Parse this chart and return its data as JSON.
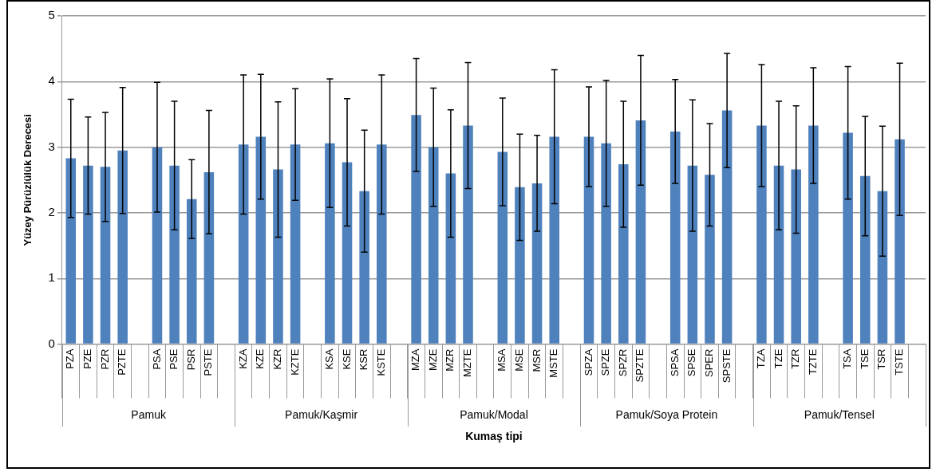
{
  "chart_data": {
    "type": "bar",
    "xlabel": "Kumaş tipi",
    "ylabel": "Yüzey Pürüzlülük Derecesi",
    "categories": [
      "PZA",
      "PZE",
      "PZR",
      "PZTE",
      null,
      "PSA",
      "PSE",
      "PSR",
      "PSTE",
      null,
      "KZA",
      "KZE",
      "KZR",
      "KZTE",
      null,
      "KSA",
      "KSE",
      "KSR",
      "KSTE",
      null,
      "MZA",
      "MZE",
      "MZR",
      "MZTE",
      null,
      "MSA",
      "MSE",
      "MSR",
      "MSTE",
      null,
      "SPZA",
      "SPZE",
      "SPZR",
      "SPZTE",
      null,
      "SPSA",
      "SPSE",
      "SPER",
      "SPSTE",
      null,
      "TZA",
      "TZE",
      "TZR",
      "TZTE",
      null,
      "TSA",
      "TSE",
      "TSR",
      "TSTE",
      null
    ],
    "values": [
      2.83,
      2.72,
      2.7,
      2.95,
      null,
      3.0,
      2.72,
      2.21,
      2.62,
      null,
      3.04,
      3.16,
      2.66,
      3.04,
      null,
      3.06,
      2.77,
      2.33,
      3.04,
      null,
      3.49,
      3.0,
      2.6,
      3.33,
      null,
      2.93,
      2.39,
      2.45,
      3.16,
      null,
      3.16,
      3.06,
      2.74,
      3.41,
      null,
      3.24,
      2.72,
      2.58,
      3.56,
      null,
      3.33,
      2.72,
      2.66,
      3.33,
      null,
      3.22,
      2.56,
      2.33,
      3.12,
      null
    ],
    "errors": [
      0.9,
      0.74,
      0.83,
      0.96,
      null,
      0.99,
      0.98,
      0.6,
      0.94,
      null,
      1.06,
      0.95,
      1.03,
      0.85,
      null,
      0.98,
      0.97,
      0.93,
      1.06,
      null,
      0.86,
      0.9,
      0.97,
      0.96,
      null,
      0.82,
      0.81,
      0.73,
      1.02,
      null,
      0.76,
      0.96,
      0.96,
      0.99,
      null,
      0.79,
      1.0,
      0.78,
      0.87,
      null,
      0.93,
      0.98,
      0.97,
      0.88,
      null,
      1.01,
      0.91,
      0.99,
      1.16,
      null
    ],
    "color": "#4f81bd",
    "ylim": [
      0,
      5
    ],
    "yticks": [
      0,
      1,
      2,
      3,
      4,
      5
    ],
    "grid": "y",
    "annotations": [
      "Pamuk",
      "Pamuk/Kaşmir",
      "Pamuk/Modal",
      "Pamuk/Soya Protein",
      "Pamuk/Tensel"
    ]
  }
}
